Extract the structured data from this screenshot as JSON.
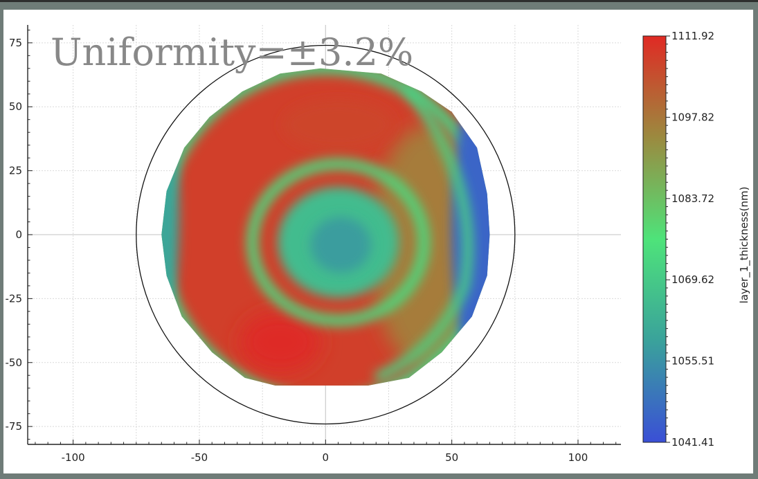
{
  "chart_data": {
    "type": "heatmap",
    "title": "Uniformity=±3.2%",
    "xlabel": "",
    "ylabel": "",
    "xlim": [
      -118,
      117
    ],
    "ylim": [
      -82,
      82
    ],
    "x_ticks": [
      "-100",
      "-50",
      "0",
      "50",
      "100"
    ],
    "x_tick_values": [
      -100,
      -50,
      0,
      50,
      100
    ],
    "y_ticks": [
      "75",
      "50",
      "25",
      "0",
      "-25",
      "-50",
      "-75"
    ],
    "y_tick_values": [
      75,
      50,
      25,
      0,
      -25,
      -50,
      -75
    ],
    "grid": true,
    "wafer_edge_radius": 75,
    "measured_region": [
      [
        -2,
        65
      ],
      [
        22,
        63
      ],
      [
        38,
        56
      ],
      [
        50,
        48
      ],
      [
        60,
        34
      ],
      [
        64,
        16
      ],
      [
        65,
        0
      ],
      [
        64,
        -16
      ],
      [
        58,
        -32
      ],
      [
        46,
        -46
      ],
      [
        33,
        -56
      ],
      [
        17,
        -59
      ],
      [
        -2,
        -59
      ],
      [
        -20,
        -59
      ],
      [
        -32,
        -56
      ],
      [
        -45,
        -46
      ],
      [
        -57,
        -32
      ],
      [
        -63,
        -16
      ],
      [
        -65,
        0
      ],
      [
        -63,
        17
      ],
      [
        -56,
        34
      ],
      [
        -46,
        46
      ],
      [
        -33,
        56
      ],
      [
        -18,
        63
      ]
    ],
    "colorbar": {
      "label": "layer_1_thickness(nm)",
      "min": 1041.41,
      "max": 1111.92,
      "ticks": [
        "1111.92",
        "1097.82",
        "1083.72",
        "1069.62",
        "1055.51",
        "1041.41"
      ],
      "tick_values": [
        1111.92,
        1097.82,
        1083.72,
        1069.62,
        1055.51,
        1041.41
      ],
      "colors": [
        "#3a4fd6",
        "#3aa29b",
        "#4ee37a",
        "#9b8a3f",
        "#e02a24"
      ]
    },
    "thickness_features": [
      {
        "x": 5,
        "y": -5,
        "value": 1060
      },
      {
        "x": -25,
        "y": 10,
        "value": 1108
      },
      {
        "x": -15,
        "y": -42,
        "value": 1111
      },
      {
        "x": 5,
        "y": 42,
        "value": 1106
      },
      {
        "x": 38,
        "y": -10,
        "value": 1096
      },
      {
        "x": 62,
        "y": 0,
        "value": 1043
      }
    ]
  }
}
